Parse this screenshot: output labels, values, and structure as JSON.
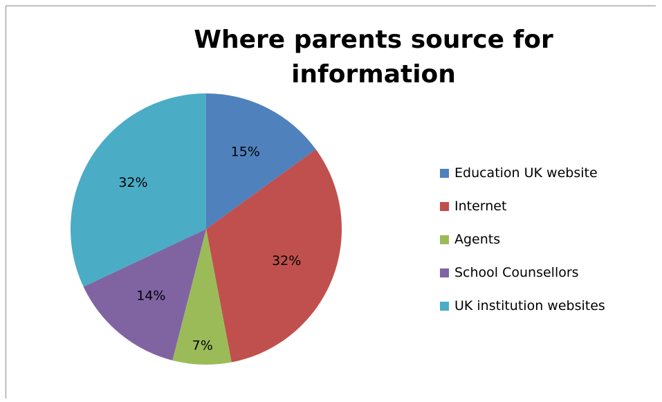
{
  "chart_data": {
    "type": "pie",
    "title_lines": [
      "Where parents source for",
      "information"
    ],
    "categories": [
      "Education UK website",
      "Internet",
      "Agents",
      "School Counsellors",
      "UK institution websites"
    ],
    "values": [
      15,
      32,
      7,
      14,
      32
    ],
    "data_labels": [
      "15%",
      "32%",
      "7%",
      "14%",
      "32%"
    ],
    "colors": [
      "#4f81bd",
      "#c0504d",
      "#9bbb59",
      "#8064a2",
      "#4bacc6"
    ],
    "legend_position": "right"
  }
}
